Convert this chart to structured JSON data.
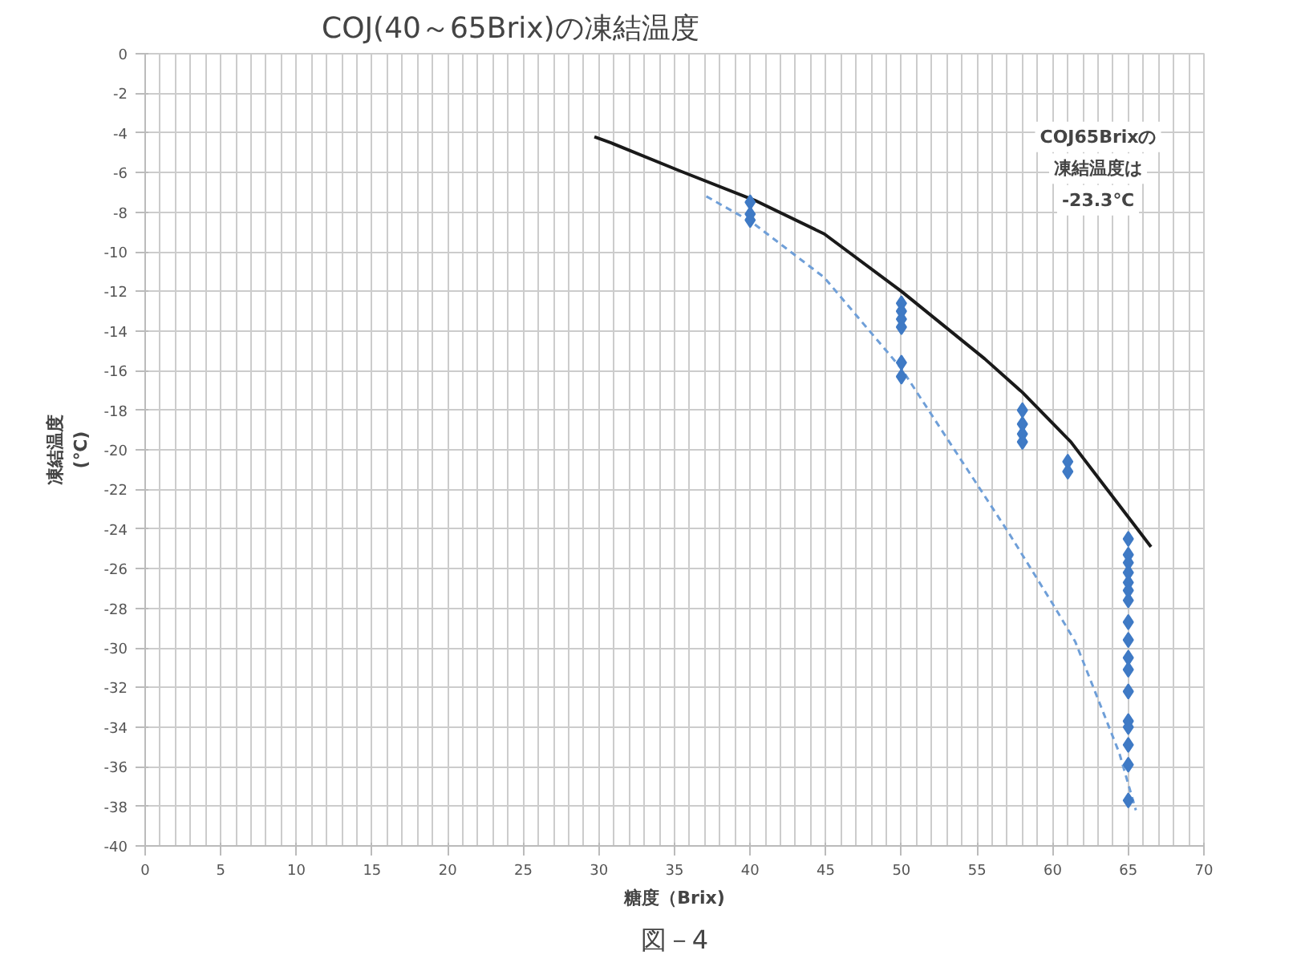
{
  "chart_data": {
    "type": "scatter",
    "title": "COJ(40～65Brix)の凍結温度",
    "xlabel": "糖度（Brix)",
    "ylabel": "凍結温度\n(℃)",
    "xlim": [
      0,
      70
    ],
    "xticks": [
      0,
      5,
      10,
      15,
      20,
      25,
      30,
      35,
      40,
      45,
      50,
      55,
      60,
      65,
      70
    ],
    "ylim": [
      -40,
      0
    ],
    "yticks": [
      0,
      -2,
      -4,
      -6,
      -8,
      -10,
      -12,
      -14,
      -16,
      -18,
      -20,
      -22,
      -24,
      -26,
      -28,
      -30,
      -32,
      -34,
      -36,
      -38,
      -40
    ],
    "grid": true,
    "annotations": [
      "COJ65Brixの",
      "凍結温度は",
      "-23.3℃",
      "図－4"
    ],
    "series": [
      {
        "type": "line",
        "color": "#1a1a1a",
        "line_style": "solid",
        "marker": "none",
        "x": [
          29.7,
          30.8,
          35.3,
          40.3,
          44.9,
          50.0,
          55.5,
          58.0,
          61.2,
          63.3,
          65.5,
          66.5
        ],
        "values": [
          -4.2,
          -4.5,
          -5.9,
          -7.4,
          -9.1,
          -12.0,
          -15.4,
          -17.1,
          -19.6,
          -21.7,
          -23.9,
          -24.9
        ]
      },
      {
        "type": "line",
        "color": "#6f9fd8",
        "line_style": "dashed",
        "marker": "none",
        "x": [
          37.1,
          40.1,
          44.9,
          50.0,
          57.1,
          60.1,
          61.5,
          64.4,
          65.5
        ],
        "values": [
          -7.2,
          -8.5,
          -11.3,
          -15.9,
          -24.2,
          -27.9,
          -29.7,
          -35.3,
          -38.2
        ]
      },
      {
        "type": "scatter",
        "color": "#3f7ac5",
        "marker": "diamond",
        "x": [
          40,
          40,
          40,
          50,
          50,
          50,
          50,
          50,
          50,
          58,
          58,
          58,
          58,
          61,
          61,
          65,
          65,
          65,
          65,
          65,
          65,
          65,
          65,
          65,
          65,
          65,
          65,
          65,
          65,
          65,
          65,
          65
        ],
        "values": [
          -7.5,
          -8.1,
          -8.4,
          -12.6,
          -13.0,
          -13.4,
          -13.8,
          -15.6,
          -16.3,
          -18.0,
          -18.7,
          -19.2,
          -19.6,
          -20.6,
          -21.1,
          -24.5,
          -25.3,
          -25.7,
          -26.2,
          -26.7,
          -27.1,
          -27.6,
          -28.7,
          -29.6,
          -30.5,
          -31.1,
          -32.2,
          -33.7,
          -34.0,
          -34.9,
          -35.9,
          -37.7
        ]
      }
    ]
  }
}
